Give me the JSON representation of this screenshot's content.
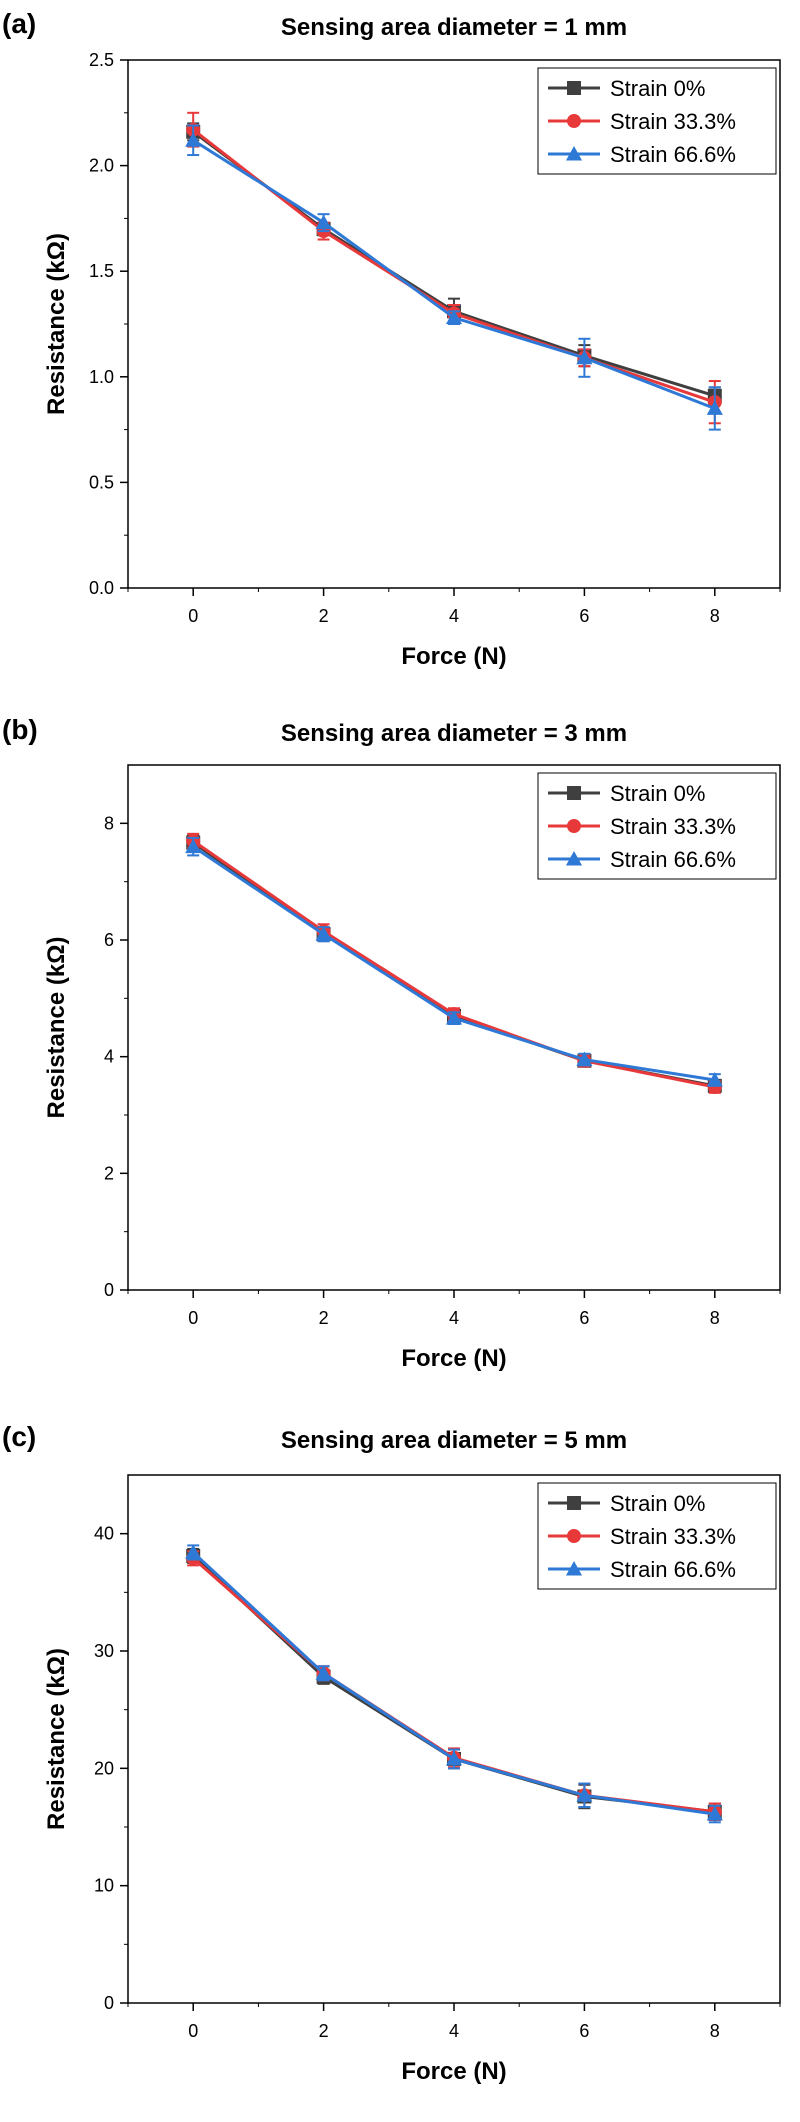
{
  "colors": {
    "strain0": "#3f3f3f",
    "strain33": "#e8393a",
    "strain66": "#2f79d6"
  },
  "chart_data": [
    {
      "type": "line",
      "panel_label": "(a)",
      "title": "Sensing area diameter = 1 mm",
      "xlabel": "Force (N)",
      "ylabel": "Resistance (kΩ)",
      "xlim": [
        -1,
        9
      ],
      "ylim": [
        0,
        2.5
      ],
      "x_ticks": [
        "0",
        "2",
        "4",
        "6",
        "8"
      ],
      "y_ticks": [
        "0.0",
        "0.5",
        "1.0",
        "1.5",
        "2.0",
        "2.5"
      ],
      "x": [
        0,
        2,
        4,
        6,
        8
      ],
      "legend_position": "top-right",
      "grid": false,
      "series": [
        {
          "name": "Strain 0%",
          "marker": "square",
          "values": [
            2.16,
            1.7,
            1.31,
            1.1,
            0.91
          ],
          "errors": [
            0.04,
            0.03,
            0.06,
            0.05,
            0.04
          ]
        },
        {
          "name": "Strain 33.3%",
          "marker": "circle",
          "values": [
            2.17,
            1.69,
            1.3,
            1.09,
            0.88
          ],
          "errors": [
            0.08,
            0.04,
            0.04,
            0.04,
            0.1
          ]
        },
        {
          "name": "Strain 66.6%",
          "marker": "triangle",
          "values": [
            2.12,
            1.73,
            1.28,
            1.09,
            0.85
          ],
          "errors": [
            0.07,
            0.04,
            0.03,
            0.09,
            0.1
          ]
        }
      ]
    },
    {
      "type": "line",
      "panel_label": "(b)",
      "title": "Sensing area diameter = 3 mm",
      "xlabel": "Force (N)",
      "ylabel": "Resistance (kΩ)",
      "xlim": [
        -1,
        9
      ],
      "ylim": [
        0,
        9
      ],
      "x_ticks": [
        "0",
        "2",
        "4",
        "6",
        "8"
      ],
      "y_ticks": [
        "0",
        "2",
        "4",
        "6",
        "8"
      ],
      "x": [
        0,
        2,
        4,
        6,
        8
      ],
      "legend_position": "top-right",
      "grid": false,
      "series": [
        {
          "name": "Strain 0%",
          "marker": "square",
          "values": [
            7.67,
            6.1,
            4.7,
            3.93,
            3.5
          ],
          "errors": [
            0.12,
            0.12,
            0.1,
            0.1,
            0.1
          ]
        },
        {
          "name": "Strain 33.3%",
          "marker": "circle",
          "values": [
            7.7,
            6.15,
            4.73,
            3.93,
            3.48
          ],
          "errors": [
            0.12,
            0.12,
            0.1,
            0.1,
            0.1
          ]
        },
        {
          "name": "Strain 66.6%",
          "marker": "triangle",
          "values": [
            7.6,
            6.1,
            4.66,
            3.95,
            3.6
          ],
          "errors": [
            0.15,
            0.12,
            0.1,
            0.1,
            0.1
          ]
        }
      ]
    },
    {
      "type": "line",
      "panel_label": "(c)",
      "title": "Sensing area diameter = 5 mm",
      "xlabel": "Force (N)",
      "ylabel": "Resistance (kΩ)",
      "xlim": [
        -1,
        9
      ],
      "ylim": [
        0,
        45
      ],
      "x_ticks": [
        "0",
        "2",
        "4",
        "6",
        "8"
      ],
      "y_ticks": [
        "0",
        "10",
        "20",
        "30",
        "40"
      ],
      "x": [
        0,
        2,
        4,
        6,
        8
      ],
      "legend_position": "top-right",
      "grid": false,
      "series": [
        {
          "name": "Strain 0%",
          "marker": "square",
          "values": [
            38.1,
            27.8,
            20.8,
            17.6,
            16.3
          ],
          "errors": [
            0.6,
            0.6,
            0.8,
            1.0,
            0.7
          ]
        },
        {
          "name": "Strain 33.3%",
          "marker": "circle",
          "values": [
            37.9,
            28.1,
            20.9,
            17.7,
            16.3
          ],
          "errors": [
            0.6,
            0.6,
            0.8,
            1.0,
            0.7
          ]
        },
        {
          "name": "Strain 66.6%",
          "marker": "triangle",
          "values": [
            38.4,
            28.1,
            20.8,
            17.7,
            16.1
          ],
          "errors": [
            0.6,
            0.6,
            0.8,
            1.0,
            0.7
          ]
        }
      ]
    }
  ]
}
